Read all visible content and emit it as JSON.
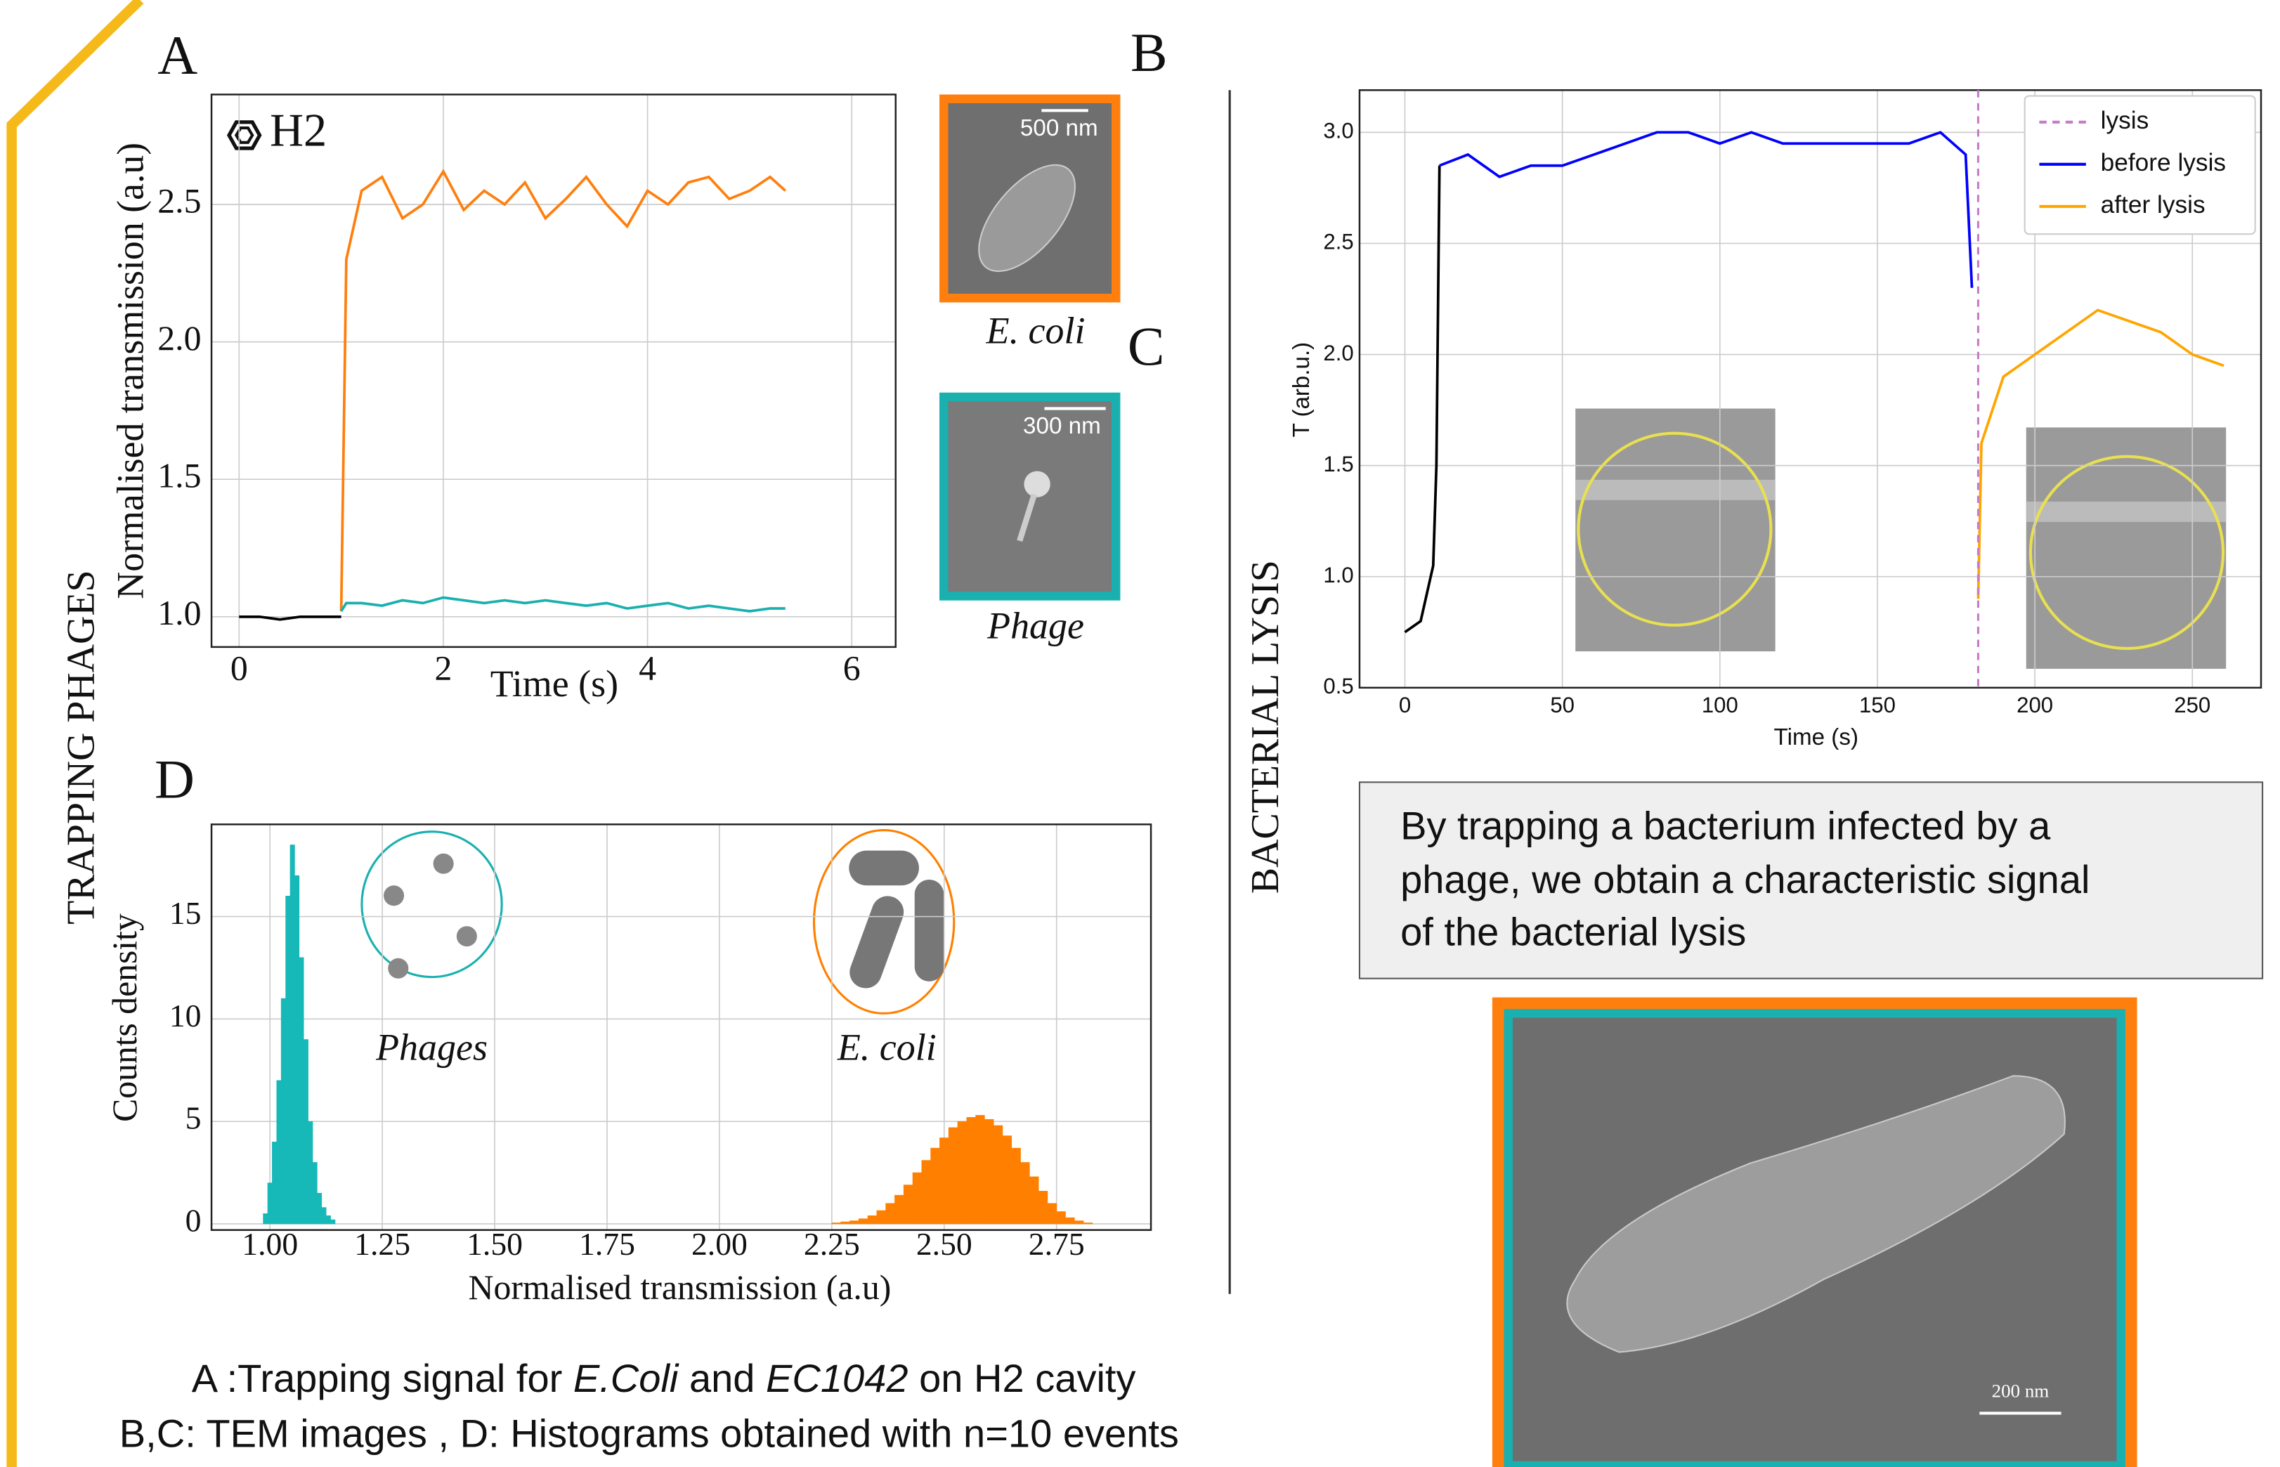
{
  "chart_data": [
    {
      "type": "line",
      "annotation": "H2",
      "xlabel": "Time (s)",
      "ylabel": "Normalised transmission (a.u)",
      "x": [
        0,
        0.2,
        0.4,
        0.6,
        0.8,
        1.0,
        1.05,
        1.2,
        1.4,
        1.6,
        1.8,
        2.0,
        2.2,
        2.4,
        2.6,
        2.8,
        3.0,
        3.2,
        3.4,
        3.6,
        3.8,
        4.0,
        4.2,
        4.4,
        4.6,
        4.8,
        5.0,
        5.2,
        5.35
      ],
      "series": [
        {
          "color": "#000000",
          "values": [
            1.0,
            1.0,
            0.99,
            1.0,
            1.0,
            1.0,
            null,
            null,
            null,
            null,
            null,
            null,
            null,
            null,
            null,
            null,
            null,
            null,
            null,
            null,
            null,
            null,
            null,
            null,
            null,
            null,
            null,
            null,
            null
          ]
        },
        {
          "color": "#ff7f0e",
          "values": [
            null,
            null,
            null,
            null,
            null,
            1.02,
            2.3,
            2.55,
            2.6,
            2.45,
            2.5,
            2.62,
            2.48,
            2.55,
            2.5,
            2.58,
            2.45,
            2.52,
            2.6,
            2.5,
            2.42,
            2.55,
            2.5,
            2.58,
            2.6,
            2.52,
            2.55,
            2.6,
            2.55
          ]
        },
        {
          "color": "#1ab0b0",
          "values": [
            null,
            null,
            null,
            null,
            null,
            1.02,
            1.05,
            1.05,
            1.04,
            1.06,
            1.05,
            1.07,
            1.06,
            1.05,
            1.06,
            1.05,
            1.06,
            1.05,
            1.04,
            1.05,
            1.03,
            1.04,
            1.05,
            1.03,
            1.04,
            1.03,
            1.02,
            1.03,
            1.03
          ]
        }
      ],
      "xlim": [
        -0.27,
        6.43
      ],
      "ylim": [
        0.89,
        2.9
      ],
      "xticks": [
        0,
        2,
        4,
        6
      ],
      "yticks": [
        {
          "value": 1,
          "label": "1.0"
        },
        {
          "value": 1.5,
          "label": "1.5"
        },
        {
          "value": 2,
          "label": "2.0"
        },
        {
          "value": 2.5,
          "label": "2.5"
        }
      ],
      "grid": true
    },
    {
      "type": "line",
      "xlabel": "Time (s)",
      "ylabel": "T (arb.u.)",
      "x": [
        0,
        5,
        9,
        10,
        11,
        20,
        30,
        40,
        50,
        60,
        70,
        80,
        90,
        100,
        110,
        120,
        130,
        140,
        150,
        160,
        170,
        178,
        180,
        182,
        183,
        190,
        200,
        210,
        220,
        230,
        240,
        250,
        260
      ],
      "series": [
        {
          "color": "#000000",
          "values": [
            0.75,
            0.8,
            1.05,
            1.5,
            2.85,
            null,
            null,
            null,
            null,
            null,
            null,
            null,
            null,
            null,
            null,
            null,
            null,
            null,
            null,
            null,
            null,
            null,
            null,
            null,
            null,
            null,
            null,
            null,
            null,
            null,
            null,
            null,
            null
          ]
        },
        {
          "name": "before lysis",
          "color": "#0000ff",
          "values": [
            null,
            null,
            null,
            null,
            2.85,
            2.9,
            2.8,
            2.85,
            2.85,
            2.9,
            2.95,
            3.0,
            3.0,
            2.95,
            3.0,
            2.95,
            2.95,
            2.95,
            2.95,
            2.95,
            3.0,
            2.9,
            2.3,
            null,
            null,
            null,
            null,
            null,
            null,
            null,
            null,
            null,
            null
          ]
        },
        {
          "name": "after lysis",
          "color": "#ffa500",
          "values": [
            null,
            null,
            null,
            null,
            null,
            null,
            null,
            null,
            null,
            null,
            null,
            null,
            null,
            null,
            null,
            null,
            null,
            null,
            null,
            null,
            null,
            null,
            null,
            0.9,
            1.6,
            1.9,
            2.0,
            2.1,
            2.2,
            2.15,
            2.1,
            2.0,
            1.95
          ]
        }
      ],
      "vlines": [
        {
          "name": "lysis",
          "x": 182,
          "color": "#c77cc7"
        }
      ],
      "xlim": [
        -14.4,
        271.8
      ],
      "ylim": [
        0.5,
        3.19
      ],
      "xticks": [
        0,
        50,
        100,
        150,
        200,
        250
      ],
      "yticks": [
        {
          "value": 0.5,
          "label": "0.5"
        },
        {
          "value": 1,
          "label": "1.0"
        },
        {
          "value": 1.5,
          "label": "1.5"
        },
        {
          "value": 2,
          "label": "2.0"
        },
        {
          "value": 2.5,
          "label": "2.5"
        },
        {
          "value": 3,
          "label": "3.0"
        }
      ],
      "grid": true,
      "legend": "upper right"
    },
    {
      "type": "histogram",
      "xlabel": "Normalised transmission (a.u)",
      "ylabel": "Counts density",
      "annotations": [
        "Phages",
        "E. coli"
      ],
      "series": [
        {
          "color": "#17b8b8",
          "bins": [
            0.985,
            0.995,
            1.005,
            1.015,
            1.025,
            1.035,
            1.045,
            1.055,
            1.065,
            1.075,
            1.085,
            1.095,
            1.105,
            1.115,
            1.125,
            1.135,
            1.145
          ],
          "values": [
            0.5,
            2,
            4,
            7,
            11,
            16,
            18.5,
            17,
            13,
            9,
            5,
            3,
            1.5,
            0.8,
            0.4,
            0.2
          ]
        },
        {
          "color": "#ff8000",
          "bins": [
            2.25,
            2.27,
            2.29,
            2.31,
            2.33,
            2.35,
            2.37,
            2.39,
            2.41,
            2.43,
            2.45,
            2.47,
            2.49,
            2.51,
            2.53,
            2.55,
            2.57,
            2.59,
            2.61,
            2.63,
            2.65,
            2.67,
            2.69,
            2.71,
            2.73,
            2.75,
            2.77,
            2.79,
            2.81,
            2.83
          ],
          "values": [
            0.05,
            0.1,
            0.15,
            0.25,
            0.4,
            0.65,
            1.0,
            1.4,
            1.9,
            2.5,
            3.1,
            3.7,
            4.2,
            4.7,
            5.0,
            5.2,
            5.3,
            5.1,
            4.8,
            4.3,
            3.7,
            3.0,
            2.3,
            1.6,
            1.0,
            0.6,
            0.3,
            0.15,
            0.05
          ]
        }
      ],
      "xlim": [
        0.87,
        2.96
      ],
      "ylim": [
        -0.3,
        19.5
      ],
      "xticks": [
        {
          "value": 1,
          "label": "1.00"
        },
        {
          "value": 1.25,
          "label": "1.25"
        },
        {
          "value": 1.5,
          "label": "1.50"
        },
        {
          "value": 1.75,
          "label": "1.75"
        },
        {
          "value": 2,
          "label": "2.00"
        },
        {
          "value": 2.25,
          "label": "2.25"
        },
        {
          "value": 2.5,
          "label": "2.50"
        },
        {
          "value": 2.75,
          "label": "2.75"
        }
      ],
      "yticks": [
        0,
        5,
        10,
        15
      ],
      "grid": true
    }
  ],
  "panel_labels": [
    "A",
    "B",
    "C",
    "D"
  ],
  "side_titles": [
    "TRAPPING PHAGES",
    "BACTERIAL  LYSIS"
  ],
  "images": {
    "ecoli_scale": "500 nm",
    "ecoli_caption": "E. coli",
    "phage_scale": "300 nm",
    "phage_caption": "Phage",
    "sem_scale": "200 nm"
  },
  "text_box": [
    "By trapping a bacterium infected by a",
    "phage, we obtain a characteristic signal",
    "of the bacterial lysis"
  ],
  "caption": {
    "line1": [
      "A :Trapping signal for ",
      "E.Coli",
      " and ",
      "EC1042",
      " on H2 cavity"
    ],
    "line2": "B,C: TEM images , D: Histograms obtained with n=10 events"
  }
}
